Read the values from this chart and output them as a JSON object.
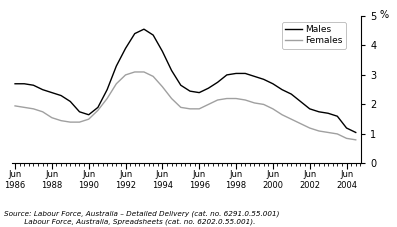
{
  "title": "",
  "ylabel": "%",
  "ylim": [
    0,
    5
  ],
  "yticks": [
    0,
    1,
    2,
    3,
    4,
    5
  ],
  "xlim_start": 1986.33,
  "xlim_end": 2005.3,
  "xtick_years": [
    1986,
    1988,
    1990,
    1992,
    1994,
    1996,
    1998,
    2000,
    2002,
    2004
  ],
  "legend_labels": [
    "Males",
    "Females"
  ],
  "males_color": "#000000",
  "females_color": "#a0a0a0",
  "source_line1": "Source: Labour Force, Australia – Detailed Delivery (cat. no. 6291.0.55.001)",
  "source_line2": "         Labour Force, Australia, Spreadsheets (cat. no. 6202.0.55.001).",
  "males_x": [
    1986.5,
    1987.0,
    1987.5,
    1988.0,
    1988.5,
    1989.0,
    1989.5,
    1990.0,
    1990.5,
    1991.0,
    1991.5,
    1992.0,
    1992.5,
    1993.0,
    1993.5,
    1994.0,
    1994.5,
    1995.0,
    1995.5,
    1996.0,
    1996.5,
    1997.0,
    1997.5,
    1998.0,
    1998.5,
    1999.0,
    1999.5,
    2000.0,
    2000.5,
    2001.0,
    2001.5,
    2002.0,
    2002.5,
    2003.0,
    2003.5,
    2004.0,
    2004.5,
    2005.0
  ],
  "males_y": [
    2.7,
    2.7,
    2.65,
    2.5,
    2.4,
    2.3,
    2.1,
    1.75,
    1.65,
    1.9,
    2.5,
    3.3,
    3.9,
    4.4,
    4.55,
    4.35,
    3.8,
    3.15,
    2.65,
    2.45,
    2.4,
    2.55,
    2.75,
    3.0,
    3.05,
    3.05,
    2.95,
    2.85,
    2.7,
    2.5,
    2.35,
    2.1,
    1.85,
    1.75,
    1.7,
    1.6,
    1.2,
    1.05
  ],
  "females_x": [
    1986.5,
    1987.0,
    1987.5,
    1988.0,
    1988.5,
    1989.0,
    1989.5,
    1990.0,
    1990.5,
    1991.0,
    1991.5,
    1992.0,
    1992.5,
    1993.0,
    1993.5,
    1994.0,
    1994.5,
    1995.0,
    1995.5,
    1996.0,
    1996.5,
    1997.0,
    1997.5,
    1998.0,
    1998.5,
    1999.0,
    1999.5,
    2000.0,
    2000.5,
    2001.0,
    2001.5,
    2002.0,
    2002.5,
    2003.0,
    2003.5,
    2004.0,
    2004.5,
    2005.0
  ],
  "females_y": [
    1.95,
    1.9,
    1.85,
    1.75,
    1.55,
    1.45,
    1.4,
    1.4,
    1.5,
    1.8,
    2.2,
    2.7,
    3.0,
    3.1,
    3.1,
    2.95,
    2.6,
    2.2,
    1.9,
    1.85,
    1.85,
    2.0,
    2.15,
    2.2,
    2.2,
    2.15,
    2.05,
    2.0,
    1.85,
    1.65,
    1.5,
    1.35,
    1.2,
    1.1,
    1.05,
    1.0,
    0.85,
    0.8
  ]
}
